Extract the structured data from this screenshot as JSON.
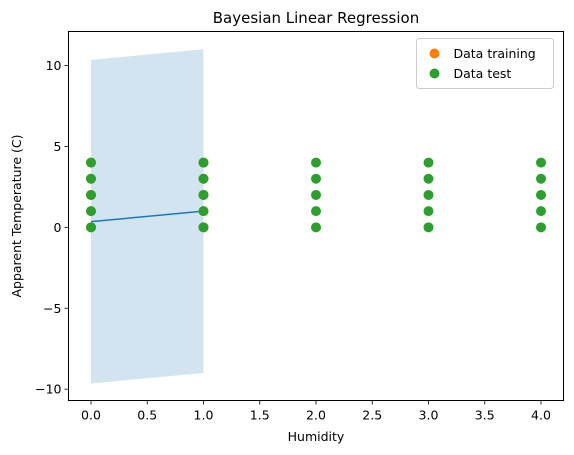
{
  "chart_data": {
    "type": "scatter",
    "title": "Bayesian Linear Regression",
    "xlabel": "Humidity",
    "ylabel": "Apparent Temperature (C)",
    "xlim": [
      -0.2,
      4.2
    ],
    "ylim": [
      -10.7,
      12.1
    ],
    "xticks": [
      0.0,
      0.5,
      1.0,
      1.5,
      2.0,
      2.5,
      3.0,
      3.5,
      4.0
    ],
    "xtick_labels": [
      "0.0",
      "0.5",
      "1.0",
      "1.5",
      "2.0",
      "2.5",
      "3.0",
      "3.5",
      "4.0"
    ],
    "yticks": [
      -10,
      -5,
      0,
      5,
      10
    ],
    "ytick_labels": [
      "−10",
      "−5",
      "0",
      "5",
      "10"
    ],
    "grid": false,
    "legend_position": "top-right",
    "series": [
      {
        "name": "Data training",
        "kind": "scatter",
        "color": "#ff7f0e",
        "points": [
          [
            0,
            0
          ],
          [
            0,
            1
          ],
          [
            0,
            2
          ],
          [
            0,
            3
          ],
          [
            0,
            4
          ],
          [
            1,
            0
          ],
          [
            1,
            1
          ],
          [
            1,
            2
          ],
          [
            1,
            3
          ],
          [
            1,
            4
          ]
        ]
      },
      {
        "name": "Data test",
        "kind": "scatter",
        "color": "#2ca02c",
        "points": [
          [
            0,
            0
          ],
          [
            0,
            1
          ],
          [
            0,
            2
          ],
          [
            0,
            3
          ],
          [
            0,
            4
          ],
          [
            1,
            0
          ],
          [
            1,
            1
          ],
          [
            1,
            2
          ],
          [
            1,
            3
          ],
          [
            1,
            4
          ],
          [
            2,
            0
          ],
          [
            2,
            1
          ],
          [
            2,
            2
          ],
          [
            2,
            3
          ],
          [
            2,
            4
          ],
          [
            3,
            0
          ],
          [
            3,
            1
          ],
          [
            3,
            2
          ],
          [
            3,
            3
          ],
          [
            3,
            4
          ],
          [
            4,
            0
          ],
          [
            4,
            1
          ],
          [
            4,
            2
          ],
          [
            4,
            3
          ],
          [
            4,
            4
          ]
        ]
      },
      {
        "kind": "line",
        "color": "#1f77b4",
        "points": [
          [
            0,
            0.35
          ],
          [
            1,
            1.0
          ]
        ]
      },
      {
        "kind": "band",
        "color": "#1f77b4",
        "opacity": 0.2,
        "x": [
          0,
          1
        ],
        "lower": [
          -9.65,
          -9.0
        ],
        "upper": [
          10.35,
          11.0
        ]
      }
    ]
  }
}
